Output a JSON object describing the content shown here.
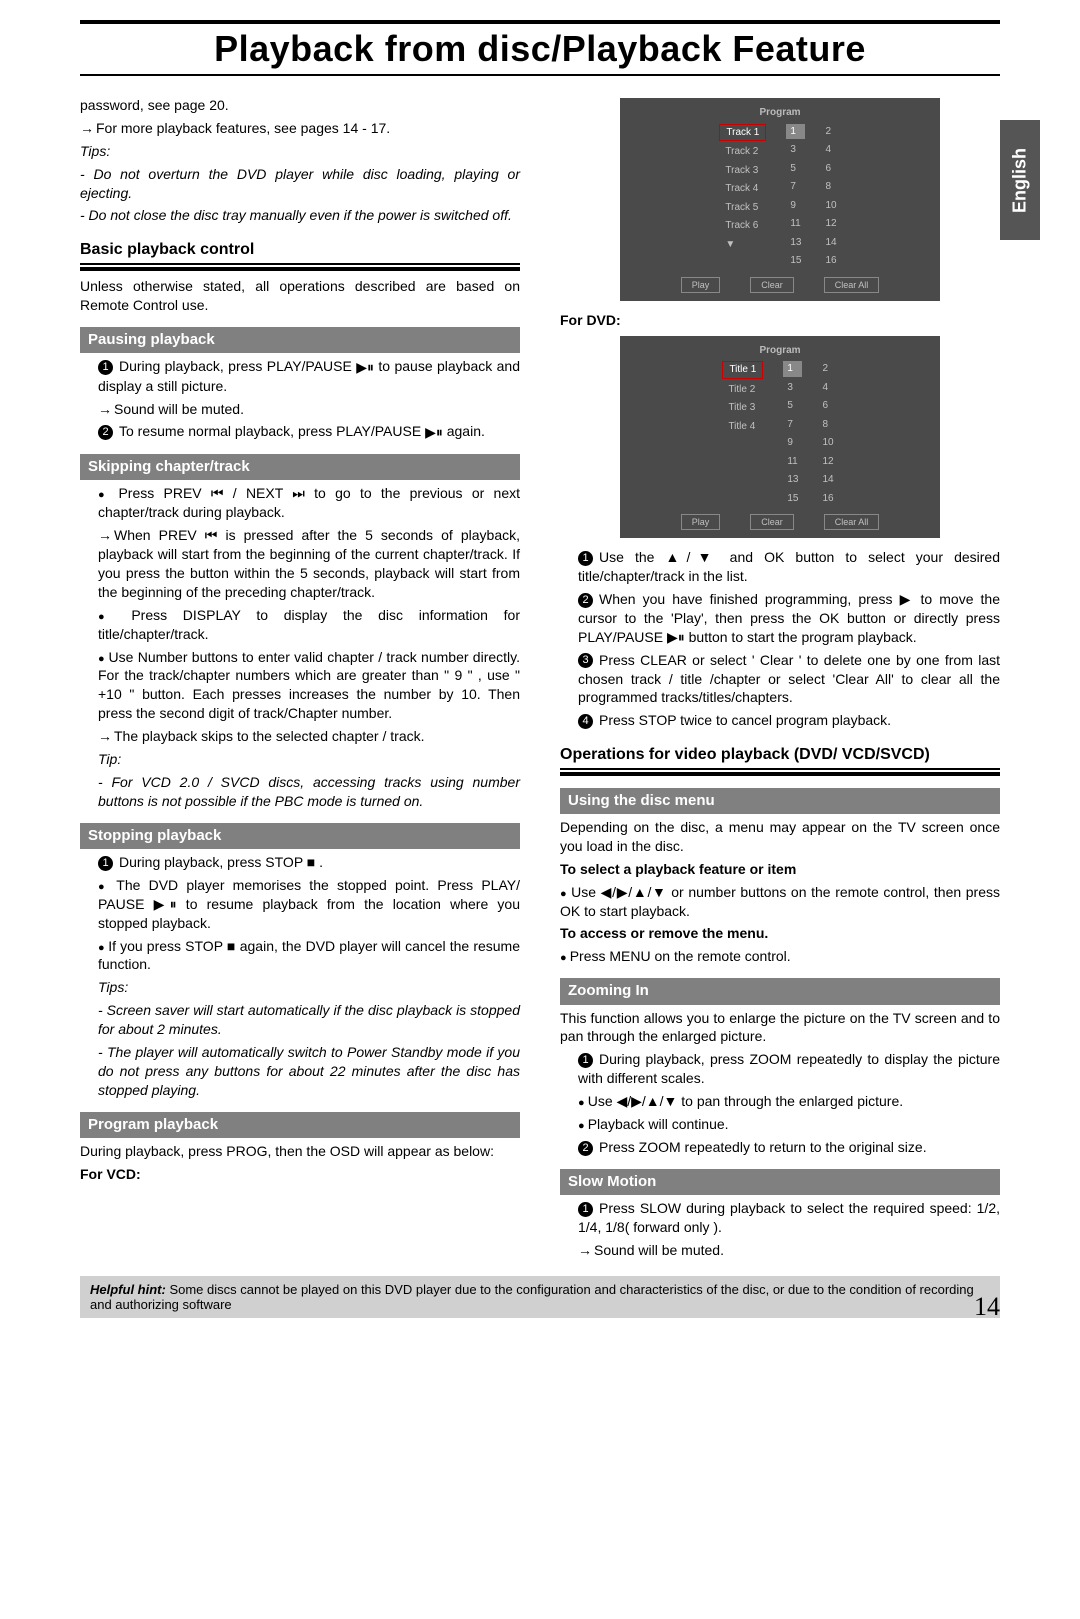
{
  "page": {
    "title": "Playback from disc/Playback Feature",
    "lang_tab": "English",
    "page_number": "14"
  },
  "left": {
    "intro_line1": "password, see page 20.",
    "intro_line2": "For more playback features, see pages 14 - 17.",
    "tips_label": "Tips:",
    "tip1": "- Do not overturn the DVD player while disc loading, playing or ejecting.",
    "tip2": "- Do not close the disc tray manually even if the power is switched off.",
    "basic_head": "Basic playback control",
    "basic_desc": "Unless otherwise stated, all operations described are based on Remote Control use.",
    "pausing_head": "Pausing playback",
    "pausing_1a": "During playback, press PLAY/PAUSE ",
    "pausing_1b": " to pause playback and display a still picture.",
    "pausing_sound": "Sound will be muted.",
    "pausing_2a": "To resume normal playback, press PLAY/PAUSE ",
    "pausing_2b": " again.",
    "skipping_head": "Skipping chapter/track",
    "skipping_1": "Press PREV ⏮ / NEXT ⏭ to go to the previous or next chapter/track during playback.",
    "skipping_2": "When PREV ⏮ is pressed after the 5 seconds of playback, playback will start from the beginning of the current chapter/track. If you press the button within the 5 seconds, playback will start from the beginning of the preceding chapter/track.",
    "skipping_3": "Press DISPLAY to display the disc information for title/chapter/track.",
    "skipping_4": "Use Number buttons to enter valid chapter / track number directly. For the track/chapter numbers which are greater than \" 9 \" , use \" +10 \" button. Each presses increases the number by 10. Then press the second digit of track/Chapter number.",
    "skipping_5": "The playback skips to the selected chapter / track.",
    "skipping_tip_lbl": "Tip:",
    "skipping_tip": "- For VCD 2.0 / SVCD discs, accessing tracks using number buttons is not possible if the PBC mode is turned on.",
    "stopping_head": "Stopping playback",
    "stopping_1": "During playback, press STOP ■ .",
    "stopping_2": "The DVD player memorises the stopped point. Press PLAY/ PAUSE ▶⏸ to resume playback from the location where you stopped playback.",
    "stopping_3": "If you press STOP ■ again, the DVD player will cancel the resume function.",
    "stopping_tips_lbl": "Tips:",
    "stopping_tip1": "- Screen saver will start automatically if the disc playback is stopped for about 2 minutes.",
    "stopping_tip2": "- The player will automatically switch to Power Standby mode if you do not press any buttons for about 22 minutes after the disc has stopped playing.",
    "program_head": "Program playback",
    "program_desc": "During playback, press  PROG, then the OSD will appear as below:",
    "for_vcd": "For VCD:"
  },
  "right": {
    "osd1": {
      "title": "Program",
      "tracks": [
        "Track 1",
        "Track 2",
        "Track 3",
        "Track 4",
        "Track 5",
        "Track 6",
        "▼"
      ],
      "nums": [
        "1",
        "2",
        "3",
        "4",
        "5",
        "6",
        "7",
        "8",
        "9",
        "10",
        "11",
        "12",
        "13",
        "14",
        "15",
        "16"
      ],
      "buttons": [
        "Play",
        "Clear",
        "Clear All"
      ]
    },
    "for_dvd": "For DVD:",
    "osd2": {
      "title": "Program",
      "tracks": [
        "Title 1",
        "Title 2",
        "Title 3",
        "Title 4"
      ],
      "nums": [
        "1",
        "2",
        "3",
        "4",
        "5",
        "6",
        "7",
        "8",
        "9",
        "10",
        "11",
        "12",
        "13",
        "14",
        "15",
        "16"
      ],
      "buttons": [
        "Play",
        "Clear",
        "Clear All"
      ]
    },
    "prog_1": "Use the ▲/▼ and OK button to select your desired title/chapter/track in the list.",
    "prog_2": "When you have finished programming, press ▶ to move the cursor to the 'Play', then press the OK button or directly press PLAY/PAUSE ▶⏸ button to start the program playback.",
    "prog_3": "Press CLEAR or select ' Clear ' to delete one by one from last chosen track / title /chapter or select 'Clear All' to clear all the programmed tracks/titles/chapters.",
    "prog_4": "Press STOP twice to cancel program playback.",
    "ops_head": "Operations for video playback (DVD/ VCD/SVCD)",
    "discmenu_head": "Using the disc menu",
    "discmenu_desc": "Depending on the disc, a menu may appear on the TV screen once you load in the disc.",
    "discmenu_sub1": "To select a playback feature or item",
    "discmenu_sub1_desc": "Use ◀/▶/▲/▼ or number buttons on the remote control, then press OK to start playback.",
    "discmenu_sub2": "To access or remove the menu.",
    "discmenu_sub2_desc": "Press MENU on the remote control.",
    "zoom_head": "Zooming In",
    "zoom_desc": "This function allows you to enlarge the picture on the TV screen and to pan through the enlarged picture.",
    "zoom_1": "During playback, press ZOOM repeatedly to display the picture with different scales.",
    "zoom_1b": "Use ◀/▶/▲/▼ to pan through the enlarged picture.",
    "zoom_1c": "Playback will continue.",
    "zoom_2": "Press ZOOM repeatedly to return to the original size.",
    "slow_head": "Slow Motion",
    "slow_1": "Press SLOW during playback to select the required speed: 1/2, 1/4, 1/8( forward only ).",
    "slow_2": "Sound will be muted."
  },
  "hint": {
    "label": "Helpful hint: ",
    "text": "Some discs cannot be played on this DVD player due to the configuration and characteristics of the disc, or due to the condition of recording and authorizing software"
  },
  "osd_style": {
    "bg": "#4a4a4a",
    "text": "#c0c0c0",
    "border_sel": "#c00"
  }
}
